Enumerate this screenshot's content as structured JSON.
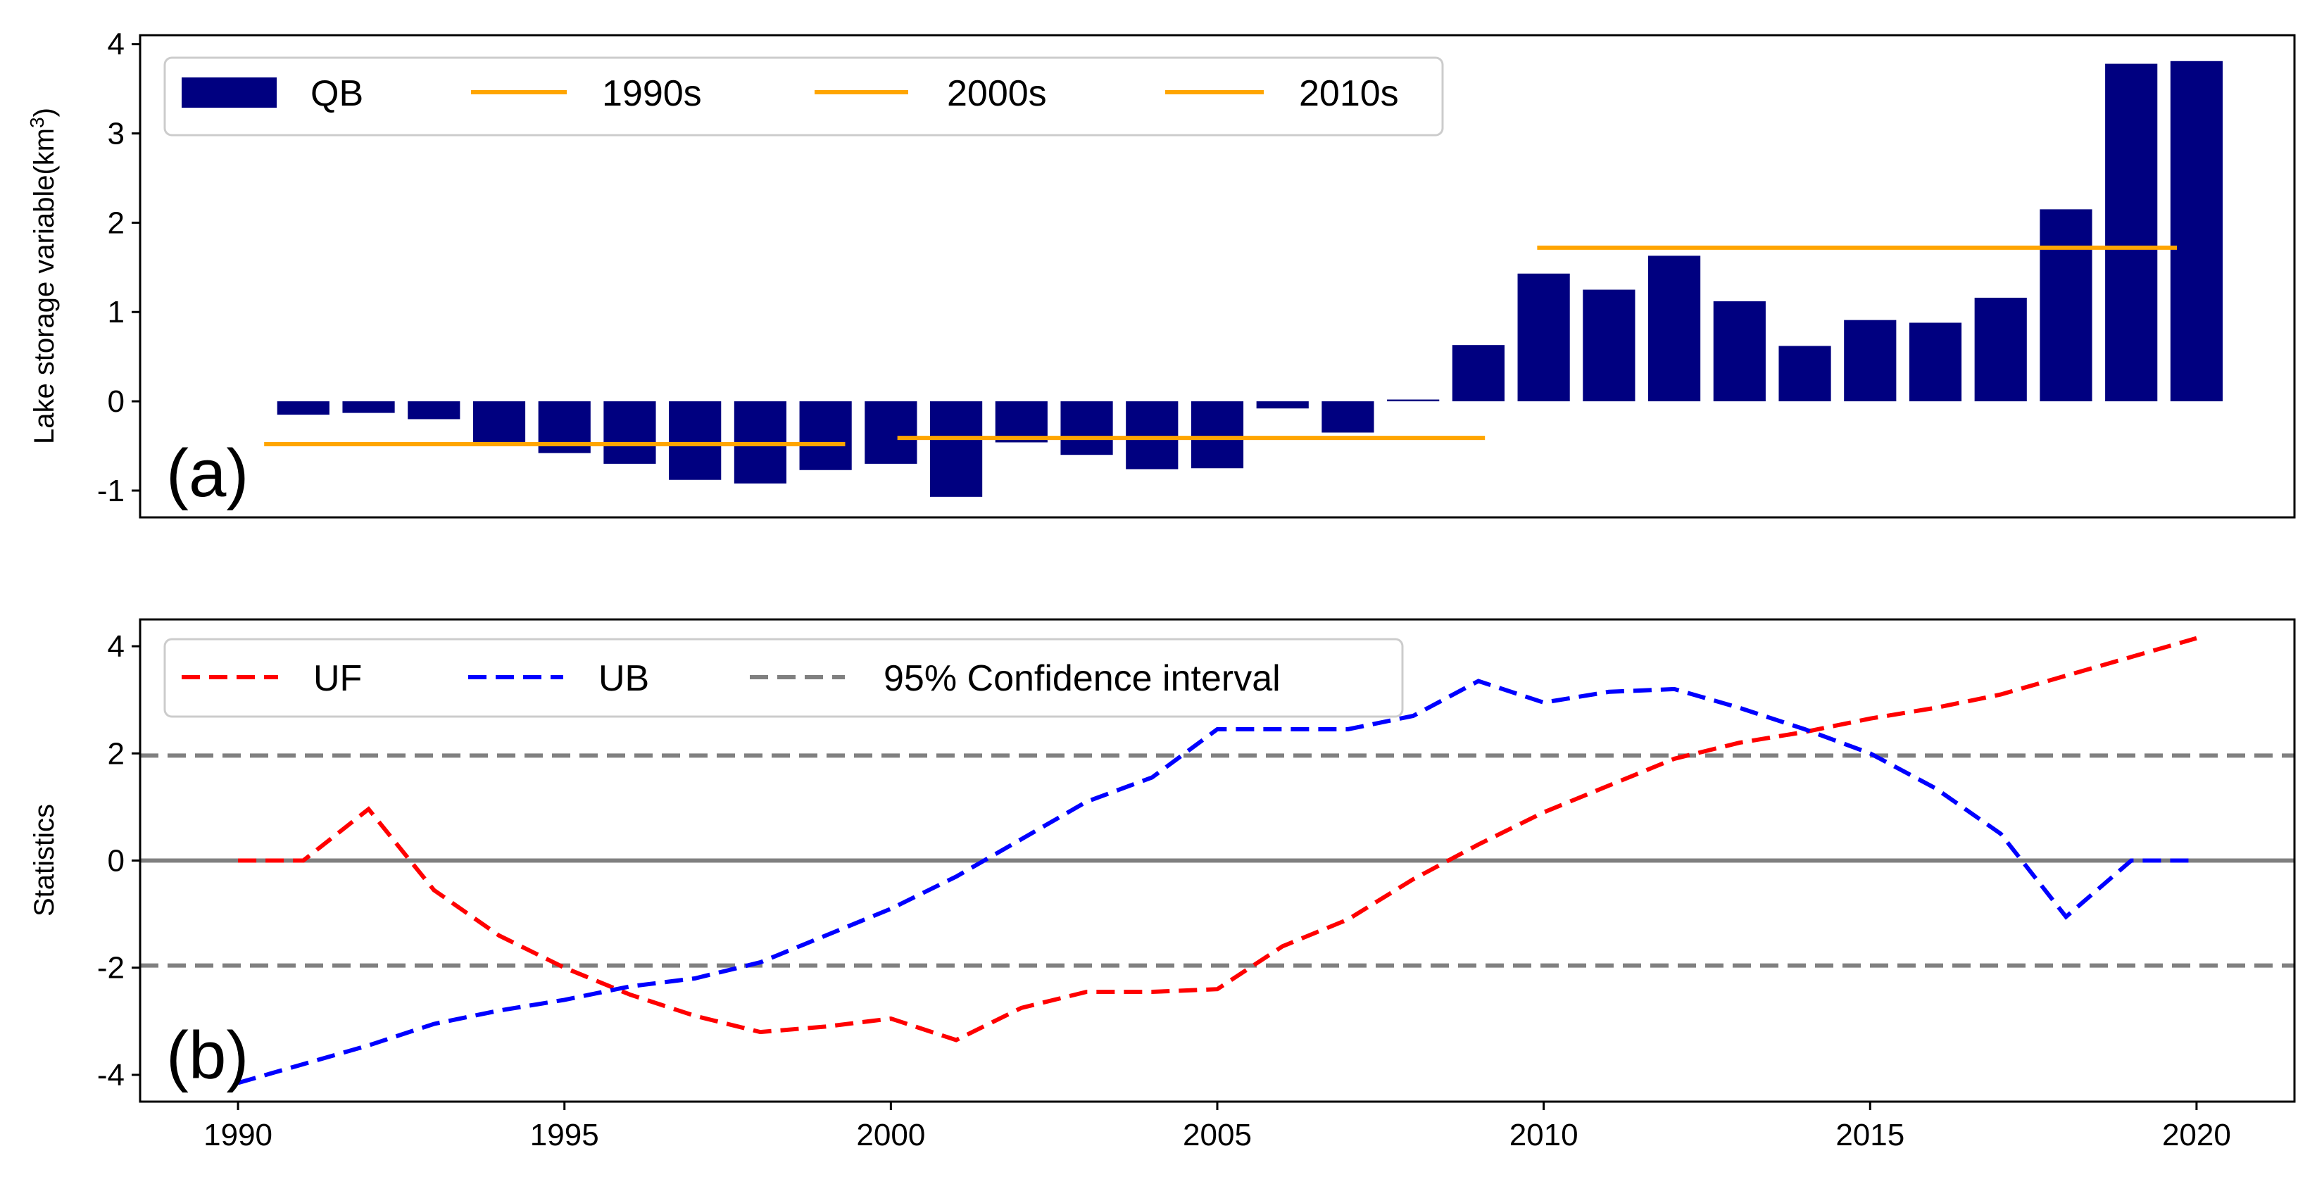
{
  "chart_data": [
    {
      "panel": "(a)",
      "type": "bar",
      "ylabel_prefix": "Lake storage variable(km",
      "ylabel_sup": "3",
      "ylabel_suffix": ")",
      "ylim": [
        -1.3,
        4.1
      ],
      "xlim": [
        1988.5,
        2021.5
      ],
      "yticks": [
        "4",
        "3",
        "2",
        "1",
        "0",
        "-1"
      ],
      "series": [
        {
          "name": "QB",
          "color": "#000080",
          "x": [
            1991,
            1992,
            1993,
            1994,
            1995,
            1996,
            1997,
            1998,
            1999,
            2000,
            2001,
            2002,
            2003,
            2004,
            2005,
            2006,
            2007,
            2008,
            2009,
            2010,
            2011,
            2012,
            2013,
            2014,
            2015,
            2016,
            2017,
            2018,
            2019,
            2020
          ],
          "values": [
            -0.15,
            -0.13,
            -0.2,
            -0.47,
            -0.58,
            -0.7,
            -0.88,
            -0.92,
            -0.77,
            -0.7,
            -1.07,
            -0.46,
            -0.6,
            -0.76,
            -0.75,
            -0.08,
            -0.35,
            0.02,
            0.63,
            1.43,
            1.25,
            1.63,
            1.12,
            0.62,
            0.91,
            0.88,
            1.16,
            2.15,
            3.78,
            3.81
          ]
        }
      ],
      "decade_means": [
        {
          "name": "1990s",
          "color": "#FFA500",
          "x0": 1990.4,
          "x1": 1999.3,
          "value": -0.48
        },
        {
          "name": "2000s",
          "color": "#FFA500",
          "x0": 2000.1,
          "x1": 2009.1,
          "value": -0.41
        },
        {
          "name": "2010s",
          "color": "#FFA500",
          "x0": 2009.9,
          "x1": 2019.7,
          "value": 1.72
        }
      ],
      "legend": [
        "QB",
        "1990s",
        "2000s",
        "2010s"
      ]
    },
    {
      "panel": "(b)",
      "type": "line",
      "ylabel": "Statistics",
      "ylim": [
        -4.5,
        4.5
      ],
      "xlim": [
        1988.5,
        2021.5
      ],
      "yticks": [
        "4",
        "2",
        "0",
        "-2",
        "-4"
      ],
      "xticks": [
        "1990",
        "1995",
        "2000",
        "2005",
        "2010",
        "2015",
        "2020"
      ],
      "x": [
        1990,
        1991,
        1992,
        1993,
        1994,
        1995,
        1996,
        1997,
        1998,
        1999,
        2000,
        2001,
        2002,
        2003,
        2004,
        2005,
        2006,
        2007,
        2008,
        2009,
        2010,
        2011,
        2012,
        2013,
        2014,
        2015,
        2016,
        2017,
        2018,
        2019,
        2020
      ],
      "series": [
        {
          "name": "UF",
          "color": "#FF0000",
          "values": [
            0.0,
            0.0,
            0.96,
            -0.55,
            -1.4,
            -2.0,
            -2.5,
            -2.9,
            -3.2,
            -3.1,
            -2.95,
            -3.35,
            -2.75,
            -2.45,
            -2.45,
            -2.4,
            -1.6,
            -1.1,
            -0.35,
            0.3,
            0.9,
            1.4,
            1.9,
            2.2,
            2.4,
            2.65,
            2.85,
            3.1,
            3.45,
            3.8,
            4.15
          ]
        },
        {
          "name": "UB",
          "color": "#0000FF",
          "values": [
            -4.15,
            -3.8,
            -3.45,
            -3.05,
            -2.8,
            -2.6,
            -2.35,
            -2.2,
            -1.9,
            -1.4,
            -0.9,
            -0.3,
            0.4,
            1.1,
            1.55,
            2.45,
            2.45,
            2.45,
            2.7,
            3.35,
            2.95,
            3.15,
            3.2,
            2.85,
            2.45,
            2.0,
            1.35,
            0.5,
            -1.05,
            0.0,
            0.0
          ]
        }
      ],
      "confidence_interval": {
        "name": "95% Confidence interval",
        "color": "#808080",
        "values": [
          1.96,
          -1.96
        ]
      },
      "zero_line_color": "#808080",
      "legend": [
        "UF",
        "UB",
        "95% Confidence interval"
      ]
    }
  ]
}
